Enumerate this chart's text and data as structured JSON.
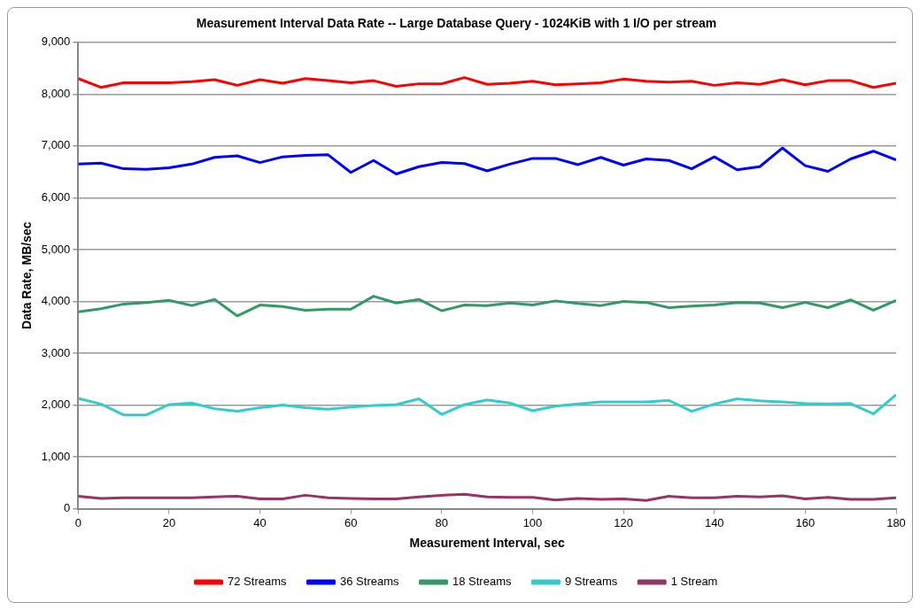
{
  "chart_data": {
    "type": "line",
    "title": "Measurement Interval Data Rate -- Large Database Query - 1024KiB with 1 I/O per stream",
    "xlabel": "Measurement Interval, sec",
    "ylabel": "Data Rate, MB/sec",
    "x": [
      0,
      5,
      10,
      15,
      20,
      25,
      30,
      35,
      40,
      45,
      50,
      55,
      60,
      65,
      70,
      75,
      80,
      85,
      90,
      95,
      100,
      105,
      110,
      115,
      120,
      125,
      130,
      135,
      140,
      145,
      150,
      155,
      160,
      165,
      170,
      175,
      180
    ],
    "xlim": [
      0,
      180
    ],
    "xticks": [
      0,
      20,
      40,
      60,
      80,
      100,
      120,
      140,
      160,
      180
    ],
    "ylim": [
      0,
      9000
    ],
    "yticks": [
      {
        "value": 0,
        "label": "0"
      },
      {
        "value": 1000,
        "label": "1,000"
      },
      {
        "value": 2000,
        "label": "2,000"
      },
      {
        "value": 3000,
        "label": "3,000"
      },
      {
        "value": 4000,
        "label": "4,000"
      },
      {
        "value": 5000,
        "label": "5,000"
      },
      {
        "value": 6000,
        "label": "6,000"
      },
      {
        "value": 7000,
        "label": "7,000"
      },
      {
        "value": 8000,
        "label": "8,000"
      },
      {
        "value": 9000,
        "label": "9,000"
      }
    ],
    "grid": "y",
    "legend": "bottom",
    "marker": "none",
    "line_style": "solid",
    "series": [
      {
        "name": "72 Streams",
        "color": "#ff0000",
        "values": [
          8300,
          8130,
          8220,
          8220,
          8220,
          8240,
          8280,
          8170,
          8280,
          8210,
          8300,
          8260,
          8220,
          8260,
          8150,
          8200,
          8200,
          8320,
          8190,
          8210,
          8250,
          8180,
          8200,
          8220,
          8290,
          8250,
          8230,
          8250,
          8170,
          8220,
          8190,
          8280,
          8180,
          8260,
          8260,
          8130,
          8210
        ]
      },
      {
        "name": "36 Streams",
        "color": "#0000ff",
        "values": [
          6650,
          6670,
          6560,
          6550,
          6580,
          6650,
          6780,
          6810,
          6680,
          6790,
          6820,
          6830,
          6490,
          6720,
          6460,
          6600,
          6680,
          6660,
          6520,
          6650,
          6760,
          6760,
          6640,
          6780,
          6630,
          6750,
          6720,
          6560,
          6790,
          6540,
          6600,
          6960,
          6620,
          6510,
          6750,
          6900,
          6730
        ]
      },
      {
        "name": "18 Streams",
        "color": "#339966",
        "values": [
          3800,
          3860,
          3950,
          3980,
          4020,
          3920,
          4040,
          3720,
          3930,
          3900,
          3830,
          3850,
          3850,
          4100,
          3970,
          4040,
          3820,
          3930,
          3920,
          3970,
          3930,
          4010,
          3960,
          3920,
          4000,
          3980,
          3880,
          3910,
          3930,
          3980,
          3970,
          3880,
          3980,
          3880,
          4030,
          3830,
          4020
        ]
      },
      {
        "name": "9 Streams",
        "color": "#33cccc",
        "values": [
          2130,
          2020,
          1810,
          1810,
          2010,
          2040,
          1930,
          1880,
          1950,
          2000,
          1950,
          1920,
          1960,
          1990,
          2010,
          2120,
          1820,
          2010,
          2100,
          2040,
          1890,
          1980,
          2020,
          2060,
          2060,
          2060,
          2090,
          1880,
          2020,
          2120,
          2080,
          2060,
          2030,
          2020,
          2030,
          1830,
          2200
        ]
      },
      {
        "name": "1 Stream",
        "color": "#993366",
        "values": [
          240,
          200,
          210,
          210,
          210,
          210,
          230,
          240,
          190,
          190,
          260,
          210,
          200,
          190,
          190,
          230,
          260,
          280,
          230,
          220,
          220,
          170,
          200,
          180,
          190,
          160,
          240,
          210,
          210,
          240,
          230,
          250,
          190,
          220,
          180,
          180,
          210
        ]
      }
    ]
  }
}
